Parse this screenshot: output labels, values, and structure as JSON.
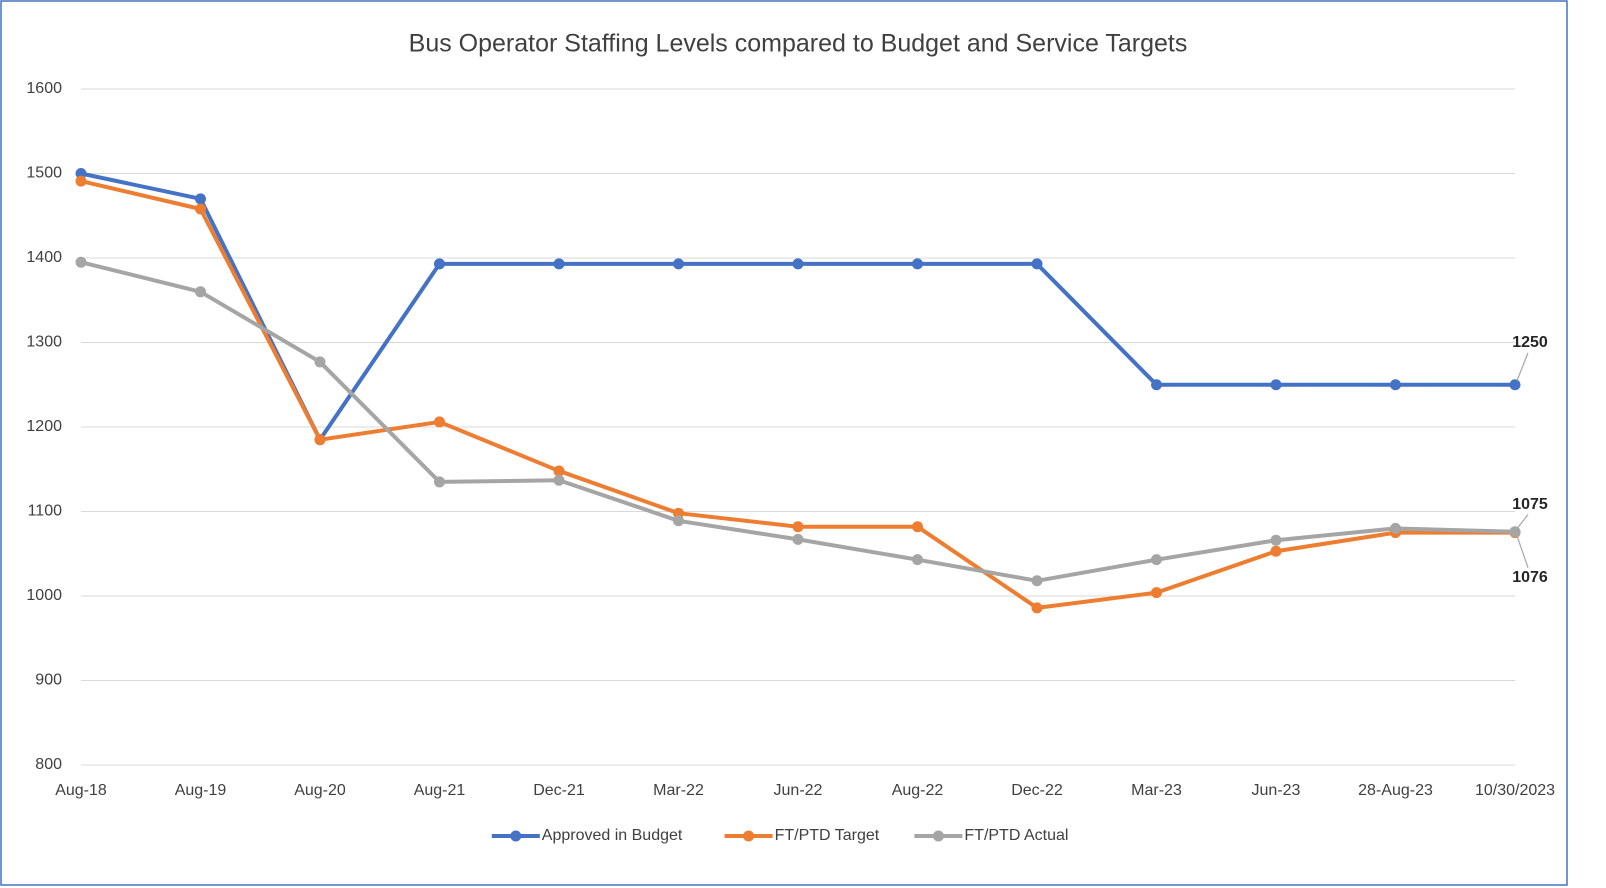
{
  "chart_data": {
    "type": "line",
    "title": "Bus Operator Staffing Levels compared to Budget and Service Targets",
    "categories": [
      "Aug-18",
      "Aug-19",
      "Aug-20",
      "Aug-21",
      "Dec-21",
      "Mar-22",
      "Jun-22",
      "Aug-22",
      "Dec-22",
      "Mar-23",
      "Jun-23",
      "28-Aug-23",
      "10/30/2023"
    ],
    "series": [
      {
        "name": "Approved in Budget",
        "color": "#4472c4",
        "data_labels": "last",
        "values": [
          1500,
          1470,
          1185,
          1393,
          1393,
          1393,
          1393,
          1393,
          1393,
          1250,
          1250,
          1250,
          1250
        ]
      },
      {
        "name": "FT/PTD Target",
        "color": "#ed7d31",
        "data_labels": "last",
        "values": [
          1491,
          1458,
          1185,
          1206,
          1148,
          1098,
          1082,
          1082,
          986,
          1004,
          1053,
          1075,
          1075
        ]
      },
      {
        "name": "FT/PTD Actual",
        "color": "#a5a5a5",
        "data_labels": "last",
        "values": [
          1395,
          1360,
          1277,
          1135,
          1137,
          1089,
          1067,
          1043,
          1018,
          1043,
          1066,
          1080,
          1076
        ]
      }
    ],
    "ylim": [
      800,
      1600
    ],
    "yticks": [
      800,
      900,
      1000,
      1100,
      1200,
      1300,
      1400,
      1500,
      1600
    ],
    "grid": true,
    "legend": "bottom"
  }
}
